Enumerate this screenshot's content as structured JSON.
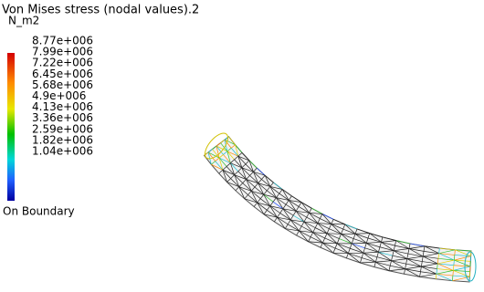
{
  "legend": {
    "title": "Von Mises stress (nodal values).2",
    "unit": "N_m2",
    "labels": [
      "8.77e+006",
      "7.99e+006",
      "7.22e+006",
      "6.45e+006",
      "5.68e+006",
      "4.9e+006",
      "4.13e+006",
      "3.36e+006",
      "2.59e+006",
      "1.82e+006",
      "1.04e+006"
    ],
    "footer": "On Boundary"
  }
}
